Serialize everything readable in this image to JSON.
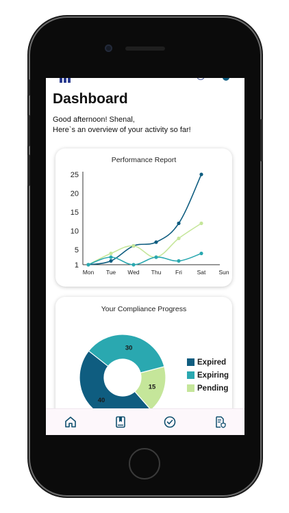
{
  "page": {
    "title": "Dashboard",
    "greeting_line1": "Good afternoon! Shenal,",
    "greeting_line2": "Here`s an overview of your activity so far!"
  },
  "performance_card": {
    "title": "Performance Report"
  },
  "compliance_card": {
    "title": "Your Compliance Progress"
  },
  "nav": {
    "items": [
      {
        "icon": "home-icon"
      },
      {
        "icon": "book-icon"
      },
      {
        "icon": "check-circle-icon"
      },
      {
        "icon": "document-shield-icon"
      }
    ]
  },
  "colors": {
    "dark_blue": "#0f5d80",
    "teal": "#2aa8b0",
    "light_green": "#c5e69a",
    "axis": "#333333"
  },
  "chart_data": [
    {
      "type": "line",
      "title": "Performance Report",
      "categories": [
        "Mon",
        "Tue",
        "Wed",
        "Thu",
        "Fri",
        "Sat",
        "Sun"
      ],
      "y_ticks": [
        1,
        5,
        10,
        15,
        20,
        25
      ],
      "ylim": [
        1,
        25
      ],
      "grid": false,
      "series": [
        {
          "color": "#0f5d80",
          "values": [
            1,
            2,
            6,
            7,
            12,
            25,
            null
          ]
        },
        {
          "color": "#c5e69a",
          "values": [
            1,
            4,
            6,
            3,
            8,
            12,
            null
          ]
        },
        {
          "color": "#2aa8b0",
          "values": [
            1,
            3,
            1,
            3,
            2,
            4,
            null
          ]
        }
      ]
    },
    {
      "type": "pie",
      "title": "Your Compliance Progress",
      "donut": true,
      "labels": [
        "Expired",
        "Expiring",
        "Pending"
      ],
      "values": [
        40,
        30,
        15
      ],
      "colors": [
        "#0f5d80",
        "#2aa8b0",
        "#c5e69a"
      ],
      "legend_position": "right"
    }
  ]
}
